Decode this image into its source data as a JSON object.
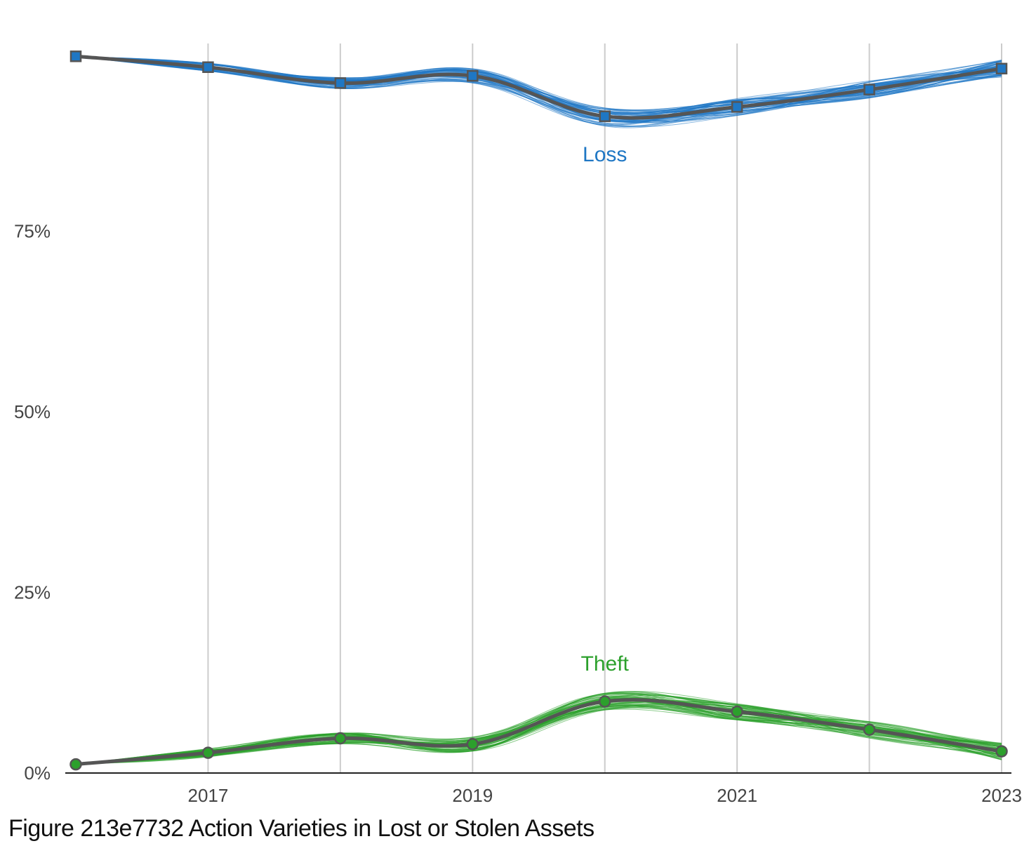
{
  "caption": "Figure 213e7732 Action Varieties in Lost or Stolen Assets",
  "chart_data": {
    "type": "line",
    "title": "",
    "xlabel": "",
    "ylabel": "",
    "x": [
      2016,
      2017,
      2018,
      2019,
      2020,
      2021,
      2022,
      2023
    ],
    "x_tick_labels": [
      "2017",
      "2019",
      "2021",
      "2023"
    ],
    "x_tick_values": [
      2017,
      2019,
      2021,
      2023
    ],
    "gridlines_x": [
      2017,
      2018,
      2019,
      2020,
      2021,
      2022,
      2023
    ],
    "ylim": [
      0,
      100
    ],
    "y_ticks": [
      0,
      25,
      50,
      75
    ],
    "y_tick_labels": [
      "0%",
      "25%",
      "50%",
      "75%"
    ],
    "grid": "vertical",
    "series": [
      {
        "name": "Loss",
        "values": [
          99.0,
          97.5,
          95.3,
          96.3,
          90.7,
          92.0,
          94.4,
          97.3
        ],
        "color": "#1f77c4",
        "marker": "square",
        "uncertainty_band": 0.6
      },
      {
        "name": "Theft",
        "values": [
          1.2,
          2.8,
          4.8,
          4.0,
          9.9,
          8.5,
          6.0,
          3.0
        ],
        "color": "#2ca02c",
        "marker": "circle",
        "uncertainty_band": 0.6
      }
    ],
    "mean_line_color": "#555555"
  }
}
